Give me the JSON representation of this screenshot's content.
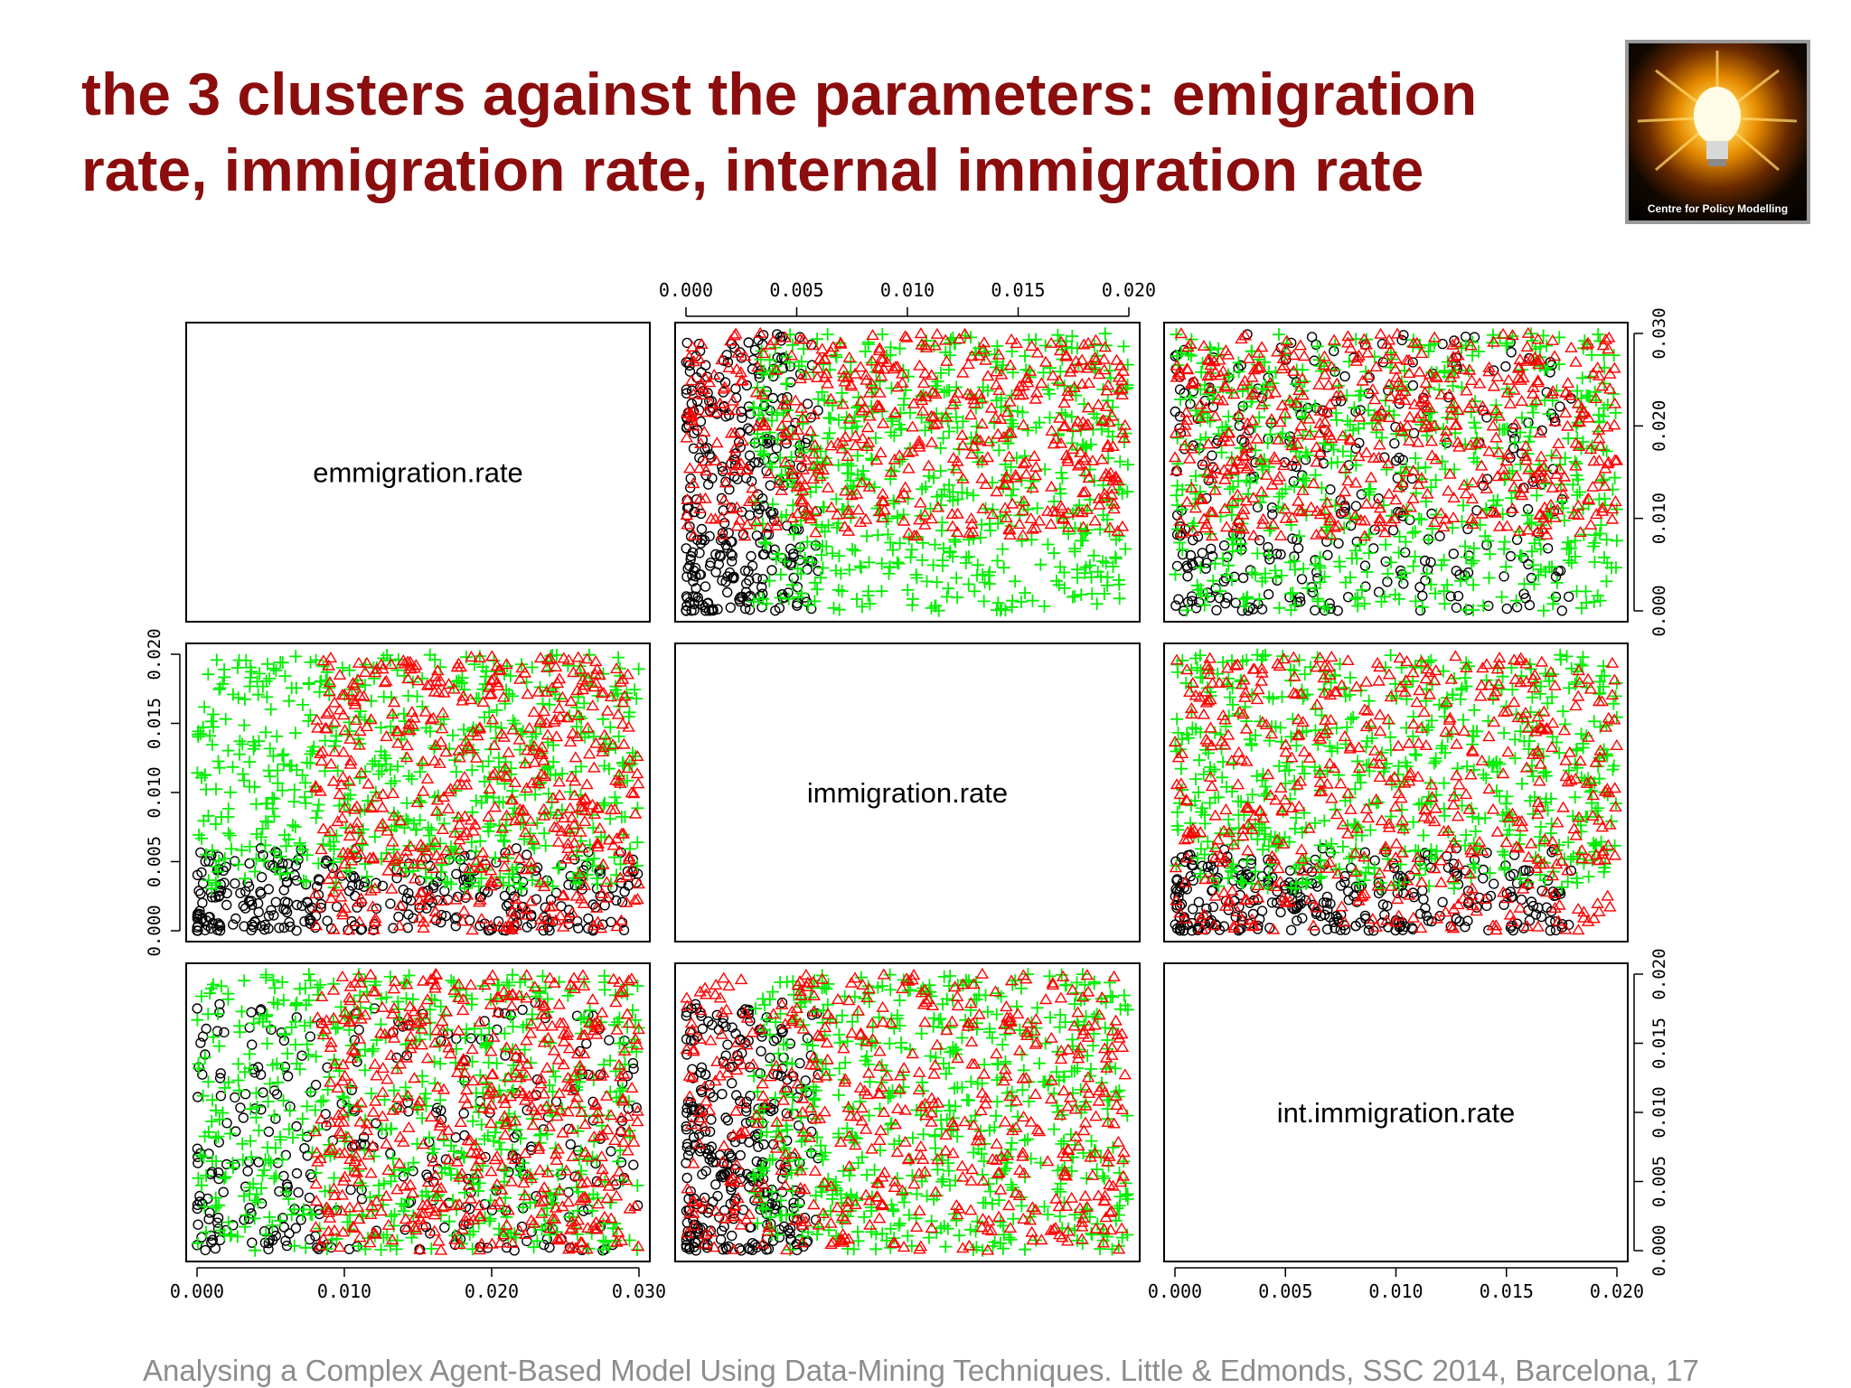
{
  "slide": {
    "title": "the 3 clusters against the parameters: emigration rate, immigration rate, internal immigration rate",
    "logo_text": "Centre for Policy Modelling",
    "logo_icon": "light-bulb-icon",
    "footer": "Analysing a Complex Agent-Based Model  Using Data-Mining Techniques. Little & Edmonds, SSC 2014, Barcelona, 17"
  },
  "chart_data": {
    "type": "scatter",
    "layout": "scatterplot-matrix",
    "variables": [
      {
        "name": "emmigration.rate",
        "range": [
          0,
          0.03
        ],
        "ticks": [
          "0.000",
          "0.010",
          "0.020",
          "0.030"
        ],
        "tick_values": [
          0,
          0.01,
          0.02,
          0.03
        ]
      },
      {
        "name": "immigration.rate",
        "range": [
          0,
          0.02
        ],
        "ticks": [
          "0.000",
          "0.005",
          "0.010",
          "0.015",
          "0.020"
        ],
        "tick_values": [
          0,
          0.005,
          0.01,
          0.015,
          0.02
        ]
      },
      {
        "name": "int.immigration.rate",
        "range": [
          0,
          0.02
        ],
        "ticks": [
          "0.000",
          "0.005",
          "0.010",
          "0.015",
          "0.020"
        ],
        "tick_values": [
          0,
          0.005,
          0.01,
          0.015,
          0.02
        ]
      }
    ],
    "clusters": [
      {
        "marker": "circle",
        "color": "#000000",
        "emigration_range": [
          0.0,
          0.03
        ],
        "immigration_range": [
          0.0,
          0.006
        ],
        "int_immigration_range": [
          0.0,
          0.018
        ]
      },
      {
        "marker": "triangle",
        "color": "#ff0000",
        "emigration_range": [
          0.008,
          0.03
        ],
        "immigration_range": [
          0.0,
          0.02
        ],
        "int_immigration_range": [
          0.0,
          0.02
        ]
      },
      {
        "marker": "plus",
        "color": "#00ee00",
        "emigration_range": [
          0.0,
          0.03
        ],
        "immigration_range": [
          0.003,
          0.02
        ],
        "int_immigration_range": [
          0.0,
          0.02
        ]
      }
    ],
    "grid": false,
    "legend": "none"
  }
}
